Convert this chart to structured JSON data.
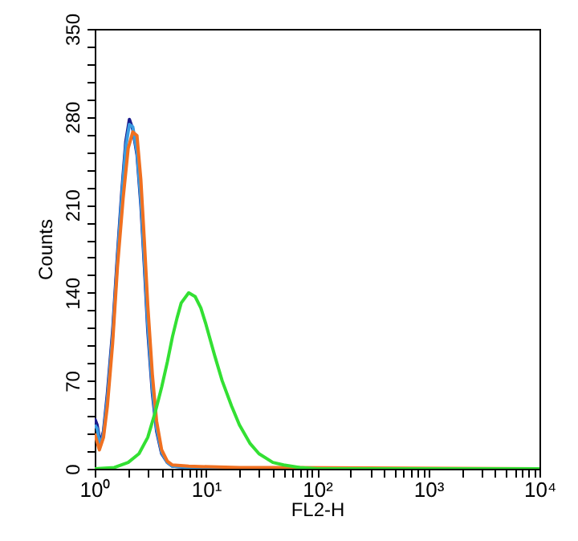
{
  "chart_data": {
    "type": "line",
    "xlabel": "FL2-H",
    "ylabel": "Counts",
    "log": "x",
    "grid": false,
    "xlim": [
      1,
      10000
    ],
    "ylim": [
      0,
      350
    ],
    "xticks": [
      {
        "value": 1,
        "label": "10⁰"
      },
      {
        "value": 2,
        "label": null
      },
      {
        "value": 3,
        "label": null
      },
      {
        "value": 4,
        "label": null
      },
      {
        "value": 5,
        "label": null
      },
      {
        "value": 6,
        "label": null
      },
      {
        "value": 7,
        "label": null
      },
      {
        "value": 8,
        "label": null
      },
      {
        "value": 9,
        "label": null
      },
      {
        "value": 10,
        "label": "10¹"
      },
      {
        "value": 20,
        "label": null
      },
      {
        "value": 30,
        "label": null
      },
      {
        "value": 40,
        "label": null
      },
      {
        "value": 50,
        "label": null
      },
      {
        "value": 60,
        "label": null
      },
      {
        "value": 70,
        "label": null
      },
      {
        "value": 80,
        "label": null
      },
      {
        "value": 90,
        "label": null
      },
      {
        "value": 100,
        "label": "10²"
      },
      {
        "value": 200,
        "label": null
      },
      {
        "value": 300,
        "label": null
      },
      {
        "value": 400,
        "label": null
      },
      {
        "value": 500,
        "label": null
      },
      {
        "value": 600,
        "label": null
      },
      {
        "value": 700,
        "label": null
      },
      {
        "value": 800,
        "label": null
      },
      {
        "value": 900,
        "label": null
      },
      {
        "value": 1000,
        "label": "10³"
      },
      {
        "value": 2000,
        "label": null
      },
      {
        "value": 3000,
        "label": null
      },
      {
        "value": 4000,
        "label": null
      },
      {
        "value": 5000,
        "label": null
      },
      {
        "value": 6000,
        "label": null
      },
      {
        "value": 7000,
        "label": null
      },
      {
        "value": 8000,
        "label": null
      },
      {
        "value": 9000,
        "label": null
      },
      {
        "value": 10000,
        "label": "10⁴"
      }
    ],
    "yticks": [
      0,
      {
        "value": 14,
        "label": null
      },
      {
        "value": 28,
        "label": null
      },
      {
        "value": 42,
        "label": null
      },
      {
        "value": 56,
        "label": null
      },
      70,
      {
        "value": 84,
        "label": null
      },
      {
        "value": 98,
        "label": null
      },
      {
        "value": 112,
        "label": null
      },
      {
        "value": 126,
        "label": null
      },
      140,
      {
        "value": 154,
        "label": null
      },
      {
        "value": 168,
        "label": null
      },
      {
        "value": 182,
        "label": null
      },
      {
        "value": 196,
        "label": null
      },
      210,
      {
        "value": 224,
        "label": null
      },
      {
        "value": 238,
        "label": null
      },
      {
        "value": 252,
        "label": null
      },
      {
        "value": 266,
        "label": null
      },
      280,
      {
        "value": 294,
        "label": null
      },
      {
        "value": 308,
        "label": null
      },
      {
        "value": 322,
        "label": null
      },
      {
        "value": 336,
        "label": null
      },
      350
    ],
    "series": [
      {
        "color": "#1a1a8c",
        "x": [
          1,
          1.05,
          1.12,
          1.2,
          1.3,
          1.45,
          1.6,
          1.75,
          1.9,
          2.05,
          2.2,
          2.4,
          2.6,
          2.8,
          3,
          3.3,
          3.6,
          4,
          4.5,
          5,
          7,
          10,
          10000
        ],
        "values": [
          40,
          35,
          20,
          30,
          60,
          110,
          170,
          220,
          260,
          278,
          270,
          250,
          210,
          160,
          110,
          60,
          30,
          12,
          5,
          2,
          1,
          0,
          0
        ]
      },
      {
        "color": "#3a9be0",
        "x": [
          1,
          1.05,
          1.12,
          1.2,
          1.3,
          1.45,
          1.6,
          1.75,
          1.9,
          2.05,
          2.2,
          2.4,
          2.6,
          2.8,
          3,
          3.3,
          3.6,
          4,
          4.5,
          5,
          7,
          10,
          10000
        ],
        "values": [
          35,
          32,
          18,
          28,
          56,
          106,
          166,
          216,
          256,
          274,
          272,
          252,
          214,
          165,
          115,
          64,
          32,
          13,
          5,
          2,
          1,
          0,
          0
        ]
      },
      {
        "color": "#f07020",
        "x": [
          1,
          1.1,
          1.2,
          1.3,
          1.45,
          1.6,
          1.8,
          2,
          2.2,
          2.4,
          2.6,
          2.8,
          3,
          3.3,
          3.6,
          4,
          4.5,
          5,
          7,
          20,
          50,
          10000
        ],
        "values": [
          28,
          15,
          25,
          50,
          100,
          160,
          215,
          255,
          268,
          265,
          230,
          180,
          130,
          75,
          38,
          15,
          6,
          3,
          2,
          1,
          1,
          0
        ]
      },
      {
        "color": "#33e033",
        "x": [
          1,
          1.5,
          2,
          2.5,
          3,
          3.5,
          4,
          4.5,
          5,
          5.5,
          6,
          7,
          8,
          9,
          10,
          12,
          14,
          17,
          20,
          25,
          30,
          40,
          50,
          70,
          100,
          10000
        ],
        "values": [
          0,
          1,
          5,
          12,
          25,
          45,
          65,
          85,
          105,
          120,
          132,
          140,
          137,
          128,
          115,
          90,
          70,
          50,
          35,
          20,
          12,
          5,
          3,
          1,
          0,
          0
        ]
      }
    ]
  }
}
